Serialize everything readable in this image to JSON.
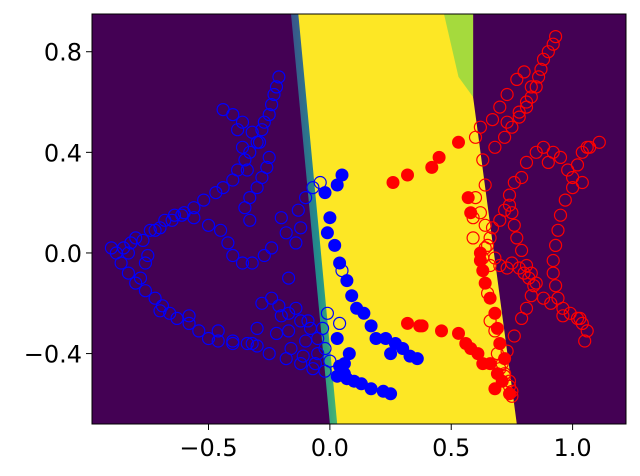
{
  "chart_data": {
    "type": "scatter",
    "title": "",
    "xlabel": "",
    "ylabel": "",
    "xlim": [
      -0.98,
      1.22
    ],
    "ylim": [
      -0.68,
      0.95
    ],
    "grid": false,
    "legend": "none",
    "x_ticks": [
      {
        "value": -0.5,
        "label": "−0.5"
      },
      {
        "value": 0.0,
        "label": "0.0"
      },
      {
        "value": 0.5,
        "label": "0.5"
      },
      {
        "value": 1.0,
        "label": "1.0"
      }
    ],
    "y_ticks": [
      {
        "value": 0.8,
        "label": "0.8"
      },
      {
        "value": 0.4,
        "label": "0.4"
      },
      {
        "value": 0.0,
        "label": "0.0"
      },
      {
        "value": -0.4,
        "label": "−0.4"
      }
    ],
    "background": {
      "description_colors": {
        "outside": "#440154",
        "inside": "#fde725"
      },
      "region_polygon": [
        [
          -0.13,
          0.95
        ],
        [
          0.59,
          0.95
        ],
        [
          0.59,
          0.62
        ],
        [
          0.77,
          -0.68
        ],
        [
          0.03,
          -0.68
        ]
      ]
    },
    "series": [
      {
        "color": "#0000ff",
        "style": "filled",
        "points": [
          [
            0.05,
            0.31
          ],
          [
            0.03,
            0.27
          ],
          [
            -0.02,
            0.24
          ],
          [
            0.0,
            0.14
          ],
          [
            -0.01,
            0.08
          ],
          [
            0.02,
            0.03
          ],
          [
            0.04,
            -0.04
          ],
          [
            0.07,
            -0.11
          ],
          [
            0.09,
            -0.17
          ],
          [
            0.11,
            -0.22
          ],
          [
            0.14,
            -0.24
          ],
          [
            0.17,
            -0.29
          ],
          [
            0.19,
            -0.34
          ],
          [
            0.23,
            -0.34
          ],
          [
            0.27,
            -0.36
          ],
          [
            0.3,
            -0.38
          ],
          [
            0.33,
            -0.41
          ],
          [
            0.36,
            -0.42
          ],
          [
            0.25,
            -0.4
          ],
          [
            0.04,
            -0.45
          ],
          [
            0.06,
            -0.44
          ],
          [
            0.05,
            -0.47
          ],
          [
            0.03,
            -0.49
          ],
          [
            0.07,
            -0.5
          ],
          [
            0.1,
            -0.51
          ],
          [
            0.13,
            -0.52
          ],
          [
            0.17,
            -0.54
          ],
          [
            0.22,
            -0.55
          ],
          [
            0.25,
            -0.56
          ],
          [
            0.08,
            -0.4
          ],
          [
            0.03,
            -0.34
          ],
          [
            0.06,
            -0.48
          ]
        ]
      },
      {
        "color": "#ff0000",
        "style": "filled",
        "points": [
          [
            0.26,
            0.28
          ],
          [
            0.32,
            0.31
          ],
          [
            0.42,
            0.34
          ],
          [
            0.45,
            0.38
          ],
          [
            0.53,
            0.44
          ],
          [
            0.57,
            0.22
          ],
          [
            0.58,
            0.16
          ],
          [
            0.62,
            0.0
          ],
          [
            0.62,
            -0.03
          ],
          [
            0.63,
            -0.07
          ],
          [
            0.64,
            -0.12
          ],
          [
            0.66,
            -0.18
          ],
          [
            0.68,
            -0.24
          ],
          [
            0.69,
            -0.3
          ],
          [
            0.7,
            -0.36
          ],
          [
            0.72,
            -0.42
          ],
          [
            0.66,
            -0.44
          ],
          [
            0.69,
            -0.48
          ],
          [
            0.71,
            -0.51
          ],
          [
            0.68,
            -0.54
          ],
          [
            0.63,
            -0.44
          ],
          [
            0.58,
            -0.38
          ],
          [
            0.61,
            -0.4
          ],
          [
            0.53,
            -0.32
          ],
          [
            0.46,
            -0.31
          ],
          [
            0.38,
            -0.29
          ],
          [
            0.32,
            -0.28
          ],
          [
            0.37,
            -0.29
          ],
          [
            0.56,
            -0.36
          ],
          [
            0.74,
            -0.56
          ]
        ]
      },
      {
        "color": "#0000ff",
        "style": "hollow",
        "points": [
          [
            -0.85,
            0.02
          ],
          [
            -0.82,
            0.04
          ],
          [
            -0.8,
            0.06
          ],
          [
            -0.77,
            0.05
          ],
          [
            -0.74,
            0.09
          ],
          [
            -0.7,
            0.1
          ],
          [
            -0.68,
            0.13
          ],
          [
            -0.64,
            0.15
          ],
          [
            -0.6,
            0.16
          ],
          [
            -0.56,
            0.18
          ],
          [
            -0.52,
            0.21
          ],
          [
            -0.47,
            0.24
          ],
          [
            -0.44,
            0.26
          ],
          [
            -0.4,
            0.29
          ],
          [
            -0.38,
            0.33
          ],
          [
            -0.35,
            0.37
          ],
          [
            -0.33,
            0.4
          ],
          [
            -0.3,
            0.44
          ],
          [
            -0.28,
            0.49
          ],
          [
            -0.27,
            0.52
          ],
          [
            -0.25,
            0.55
          ],
          [
            -0.24,
            0.59
          ],
          [
            -0.23,
            0.63
          ],
          [
            -0.22,
            0.66
          ],
          [
            -0.21,
            0.7
          ],
          [
            -0.33,
            0.13
          ],
          [
            -0.35,
            0.18
          ],
          [
            -0.33,
            0.22
          ],
          [
            -0.3,
            0.26
          ],
          [
            -0.28,
            0.3
          ],
          [
            -0.26,
            0.34
          ],
          [
            -0.25,
            0.38
          ],
          [
            -0.29,
            0.44
          ],
          [
            -0.32,
            0.48
          ],
          [
            -0.36,
            0.52
          ],
          [
            -0.4,
            0.55
          ],
          [
            -0.44,
            0.57
          ],
          [
            -0.38,
            0.49
          ],
          [
            -0.36,
            0.42
          ],
          [
            -0.34,
            0.33
          ],
          [
            -0.9,
            0.02
          ],
          [
            -0.88,
            0.0
          ],
          [
            -0.86,
            -0.04
          ],
          [
            -0.83,
            -0.08
          ],
          [
            -0.8,
            -0.12
          ],
          [
            -0.76,
            -0.15
          ],
          [
            -0.72,
            -0.18
          ],
          [
            -0.69,
            -0.21
          ],
          [
            -0.66,
            -0.24
          ],
          [
            -0.63,
            -0.26
          ],
          [
            -0.58,
            -0.28
          ],
          [
            -0.54,
            -0.31
          ],
          [
            -0.5,
            -0.34
          ],
          [
            -0.46,
            -0.35
          ],
          [
            -0.4,
            -0.36
          ],
          [
            -0.34,
            -0.36
          ],
          [
            -0.3,
            -0.37
          ],
          [
            -0.25,
            -0.4
          ],
          [
            -0.18,
            -0.42
          ],
          [
            -0.12,
            -0.44
          ],
          [
            -0.07,
            -0.46
          ],
          [
            -0.02,
            -0.47
          ],
          [
            0.0,
            -0.43
          ],
          [
            -0.02,
            -0.38
          ],
          [
            -0.05,
            -0.34
          ],
          [
            -0.08,
            -0.3
          ],
          [
            -0.12,
            -0.27
          ],
          [
            -0.17,
            -0.24
          ],
          [
            -0.21,
            -0.21
          ],
          [
            -0.24,
            -0.18
          ],
          [
            -0.17,
            -0.31
          ],
          [
            -0.1,
            -0.35
          ],
          [
            -0.05,
            -0.4
          ],
          [
            -0.14,
            -0.22
          ],
          [
            -0.28,
            -0.2
          ],
          [
            -0.3,
            -0.3
          ],
          [
            -0.22,
            -0.32
          ],
          [
            -0.16,
            -0.38
          ],
          [
            -0.11,
            -0.41
          ],
          [
            0.04,
            -0.28
          ],
          [
            -0.2,
            0.14
          ],
          [
            -0.13,
            0.17
          ],
          [
            -0.1,
            0.22
          ],
          [
            -0.07,
            0.26
          ],
          [
            -0.04,
            0.28
          ],
          [
            -0.12,
            0.1
          ],
          [
            -0.18,
            0.08
          ],
          [
            -0.24,
            0.02
          ],
          [
            -0.27,
            -0.01
          ],
          [
            -0.32,
            -0.04
          ],
          [
            -0.36,
            -0.04
          ],
          [
            -0.4,
            -0.01
          ],
          [
            -0.42,
            0.04
          ],
          [
            -0.45,
            0.09
          ],
          [
            -0.5,
            0.11
          ],
          [
            -0.56,
            0.14
          ],
          [
            -0.61,
            0.15
          ],
          [
            -0.65,
            0.13
          ],
          [
            -0.72,
            0.09
          ],
          [
            -0.75,
            -0.01
          ],
          [
            -0.76,
            -0.04
          ],
          [
            -0.7,
            -0.23
          ],
          [
            -0.58,
            -0.25
          ],
          [
            -0.46,
            -0.31
          ],
          [
            -0.4,
            -0.35
          ],
          [
            -0.32,
            -0.36
          ],
          [
            -0.14,
            0.04
          ],
          [
            -0.17,
            -0.1
          ],
          [
            -0.2,
            -0.25
          ],
          [
            -0.09,
            -0.27
          ],
          [
            -0.01,
            -0.24
          ],
          [
            0.05,
            -0.07
          ],
          [
            -0.03,
            -0.3
          ],
          [
            -0.06,
            -0.44
          ],
          [
            -0.83,
            0.0
          ],
          [
            -0.78,
            -0.1
          ]
        ]
      },
      {
        "color": "#ff0000",
        "style": "hollow",
        "points": [
          [
            0.93,
            0.86
          ],
          [
            0.92,
            0.83
          ],
          [
            0.9,
            0.8
          ],
          [
            0.88,
            0.77
          ],
          [
            0.87,
            0.73
          ],
          [
            0.86,
            0.7
          ],
          [
            0.85,
            0.66
          ],
          [
            0.83,
            0.62
          ],
          [
            0.81,
            0.58
          ],
          [
            0.78,
            0.54
          ],
          [
            0.75,
            0.5
          ],
          [
            0.72,
            0.46
          ],
          [
            0.68,
            0.42
          ],
          [
            0.63,
            0.37
          ],
          [
            0.64,
            0.27
          ],
          [
            0.6,
            0.22
          ],
          [
            0.59,
            0.14
          ],
          [
            0.59,
            0.06
          ],
          [
            0.63,
            -0.02
          ],
          [
            0.66,
            -0.05
          ],
          [
            0.73,
            0.52
          ],
          [
            0.78,
            0.56
          ],
          [
            0.81,
            0.6
          ],
          [
            0.83,
            0.66
          ],
          [
            0.8,
            0.72
          ],
          [
            0.77,
            0.69
          ],
          [
            0.73,
            0.63
          ],
          [
            0.7,
            0.58
          ],
          [
            0.67,
            0.53
          ],
          [
            0.62,
            0.5
          ],
          [
            0.6,
            0.46
          ],
          [
            0.62,
            0.16
          ],
          [
            0.64,
            0.11
          ],
          [
            0.65,
            0.03
          ],
          [
            0.68,
            -0.02
          ],
          [
            0.7,
            -0.05
          ],
          [
            0.73,
            -0.06
          ],
          [
            0.75,
            -0.04
          ],
          [
            0.78,
            -0.06
          ],
          [
            0.8,
            -0.08
          ],
          [
            0.82,
            -0.1
          ],
          [
            0.84,
            -0.13
          ],
          [
            0.83,
            -0.17
          ],
          [
            0.81,
            -0.22
          ],
          [
            0.79,
            -0.26
          ],
          [
            0.76,
            -0.33
          ],
          [
            0.73,
            -0.39
          ],
          [
            0.71,
            -0.44
          ],
          [
            0.72,
            -0.48
          ],
          [
            0.74,
            -0.53
          ],
          [
            0.75,
            -0.57
          ],
          [
            0.74,
            0.23
          ],
          [
            0.76,
            0.28
          ],
          [
            0.79,
            0.3
          ],
          [
            0.81,
            0.36
          ],
          [
            0.85,
            0.4
          ],
          [
            0.88,
            0.42
          ],
          [
            0.9,
            0.36
          ],
          [
            0.92,
            0.4
          ],
          [
            0.95,
            0.38
          ],
          [
            0.98,
            0.33
          ],
          [
            1.0,
            0.3
          ],
          [
            1.02,
            0.35
          ],
          [
            1.04,
            0.4
          ],
          [
            1.07,
            0.42
          ],
          [
            1.11,
            0.44
          ],
          [
            1.06,
            0.42
          ],
          [
            1.04,
            0.28
          ],
          [
            1.0,
            0.26
          ],
          [
            0.97,
            0.21
          ],
          [
            0.95,
            0.15
          ],
          [
            0.94,
            0.09
          ],
          [
            0.93,
            0.03
          ],
          [
            0.92,
            -0.03
          ],
          [
            0.92,
            -0.08
          ],
          [
            0.93,
            -0.13
          ],
          [
            0.94,
            -0.18
          ],
          [
            0.96,
            -0.22
          ],
          [
            0.99,
            -0.24
          ],
          [
            1.02,
            -0.26
          ],
          [
            1.04,
            -0.28
          ],
          [
            1.06,
            -0.31
          ],
          [
            1.05,
            -0.35
          ],
          [
            1.03,
            -0.26
          ],
          [
            0.96,
            -0.25
          ],
          [
            0.91,
            -0.2
          ],
          [
            0.88,
            -0.18
          ],
          [
            0.85,
            -0.12
          ],
          [
            0.83,
            -0.08
          ],
          [
            0.81,
            -0.05
          ],
          [
            0.79,
            0.01
          ],
          [
            0.77,
            0.06
          ],
          [
            0.76,
            0.11
          ],
          [
            0.75,
            0.16
          ],
          [
            0.74,
            0.19
          ],
          [
            0.72,
            0.17
          ],
          [
            0.7,
            0.13
          ],
          [
            0.67,
            0.1
          ],
          [
            0.66,
            0.06
          ],
          [
            0.64,
            0.02
          ],
          [
            0.65,
            -0.16
          ],
          [
            0.66,
            -0.27
          ],
          [
            0.68,
            -0.31
          ],
          [
            0.69,
            -0.4
          ],
          [
            0.7,
            -0.46
          ],
          [
            0.72,
            -0.49
          ],
          [
            0.74,
            -0.51
          ],
          [
            0.75,
            -0.55
          ]
        ]
      }
    ]
  }
}
